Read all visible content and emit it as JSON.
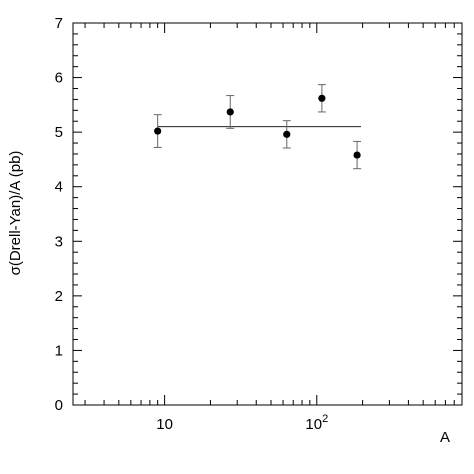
{
  "chart_data": {
    "type": "scatter",
    "xlabel": "A",
    "ylabel": "σ(Drell-Yan)/A (pb)",
    "x_scale": "log",
    "xlim": [
      2.5,
      900
    ],
    "ylim": [
      0,
      7
    ],
    "y_ticks": [
      "0",
      "1",
      "2",
      "3",
      "4",
      "5",
      "6",
      "7"
    ],
    "x_tick_labels": [
      {
        "value": 10,
        "base": "10",
        "exp": ""
      },
      {
        "value": 100,
        "base": "10",
        "exp": "2"
      }
    ],
    "grid": false,
    "series": [
      {
        "points": [
          {
            "x": 9,
            "y": 5.02,
            "err": 0.3
          },
          {
            "x": 27,
            "y": 5.37,
            "err": 0.3
          },
          {
            "x": 63.5,
            "y": 4.96,
            "err": 0.25
          },
          {
            "x": 108,
            "y": 5.62,
            "err": 0.25
          },
          {
            "x": 184,
            "y": 4.58,
            "err": 0.25
          }
        ]
      }
    ],
    "fit_line": {
      "y": 5.1,
      "x_range": [
        9,
        195
      ]
    }
  }
}
